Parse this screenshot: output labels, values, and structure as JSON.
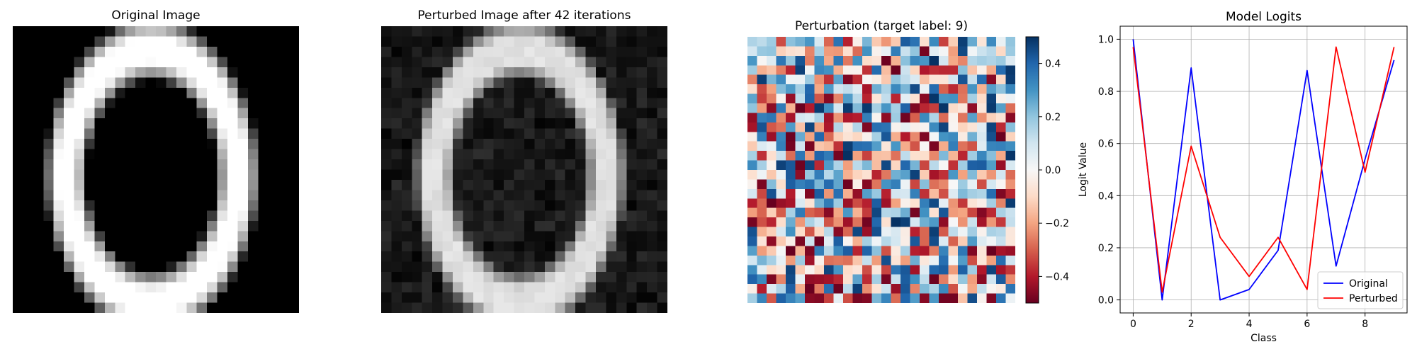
{
  "panels": {
    "original": {
      "title": "Original Image"
    },
    "perturbed": {
      "title": "Perturbed Image after 42 iterations"
    },
    "perturbation": {
      "title": "Perturbation (target label: 9)",
      "colorbar_ticks": [
        "0.4",
        "0.2",
        "0.0",
        "−0.2",
        "−0.4"
      ],
      "colorbar_tick_values": [
        0.4,
        0.2,
        0.0,
        -0.2,
        -0.4
      ],
      "colormap": "RdBu",
      "vmin": -0.5,
      "vmax": 0.5
    }
  },
  "chart_data": {
    "type": "line",
    "title": "Model Logits",
    "xlabel": "Class",
    "ylabel": "Logit Value",
    "x": [
      0,
      1,
      2,
      3,
      4,
      5,
      6,
      7,
      8,
      9
    ],
    "xlim": [
      -0.45,
      9.45
    ],
    "ylim": [
      -0.05,
      1.05
    ],
    "xticks": [
      0,
      2,
      4,
      6,
      8
    ],
    "yticks": [
      0.0,
      0.2,
      0.4,
      0.6,
      0.8,
      1.0
    ],
    "xtick_labels": [
      "0",
      "2",
      "4",
      "6",
      "8"
    ],
    "ytick_labels": [
      "0.0",
      "0.2",
      "0.4",
      "0.6",
      "0.8",
      "1.0"
    ],
    "grid": true,
    "legend_position": "lower-right",
    "series": [
      {
        "name": "Original",
        "color": "#0000ff",
        "values": [
          1.0,
          0.0,
          0.89,
          0.0,
          0.04,
          0.19,
          0.88,
          0.13,
          0.54,
          0.92
        ]
      },
      {
        "name": "Perturbed",
        "color": "#ff0000",
        "values": [
          0.97,
          0.03,
          0.59,
          0.24,
          0.09,
          0.24,
          0.04,
          0.97,
          0.49,
          0.97
        ]
      }
    ]
  }
}
